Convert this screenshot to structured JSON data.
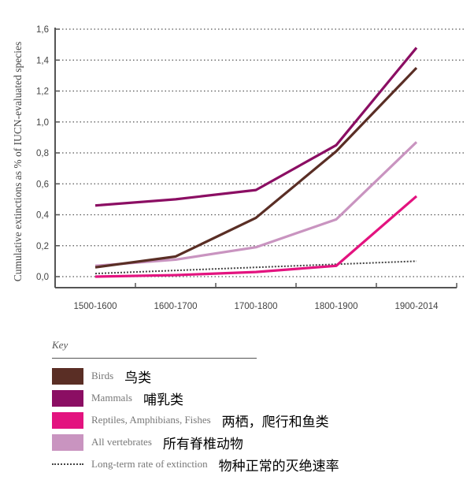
{
  "chart_data": {
    "type": "line",
    "title": "",
    "xlabel": "",
    "ylabel": "Cumulative extinctions as % of IUCN-evaluated species",
    "categories": [
      "1500-1600",
      "1600-1700",
      "1700-1800",
      "1800-1900",
      "1900-2014"
    ],
    "ylim": [
      0,
      1.6
    ],
    "yticks": [
      "0,0",
      "0,2",
      "0,4",
      "0,6",
      "0,8",
      "1,0",
      "1,2",
      "1,4",
      "1,6"
    ],
    "grid": true,
    "legend_position": "bottom",
    "series": [
      {
        "name": "Birds",
        "name_zh": "鸟类",
        "color": "#5a2e25",
        "style": "solid",
        "values": [
          0.06,
          0.13,
          0.38,
          0.81,
          1.35
        ]
      },
      {
        "name": "Mammals",
        "name_zh": "哺乳类",
        "color": "#8b0e63",
        "style": "solid",
        "values": [
          0.46,
          0.5,
          0.56,
          0.85,
          1.48
        ]
      },
      {
        "name": "Reptiles, Amphibians, Fishes",
        "name_zh": "两栖，爬行和鱼类",
        "color": "#e3137f",
        "style": "solid",
        "values": [
          0.0,
          0.01,
          0.03,
          0.07,
          0.52
        ]
      },
      {
        "name": "All vertebrates",
        "name_zh": "所有脊椎动物",
        "color": "#c994c0",
        "style": "solid",
        "values": [
          0.07,
          0.11,
          0.19,
          0.37,
          0.87
        ]
      },
      {
        "name": "Long-term rate of extinction",
        "name_zh": "物种正常的灭绝速率",
        "color": "#444444",
        "style": "dotted",
        "values": [
          0.02,
          0.04,
          0.06,
          0.08,
          0.1
        ]
      }
    ]
  },
  "legend": {
    "title": "Key",
    "items": [
      {
        "label": "Birds",
        "label_zh": "鸟类",
        "color": "#5a2e25",
        "type": "swatch"
      },
      {
        "label": "Mammals",
        "label_zh": "哺乳类",
        "color": "#8b0e63",
        "type": "swatch"
      },
      {
        "label": "Reptiles, Amphibians, Fishes",
        "label_zh": "两栖，爬行和鱼类",
        "color": "#e3137f",
        "type": "swatch"
      },
      {
        "label": "All vertebrates",
        "label_zh": "所有脊椎动物",
        "color": "#c994c0",
        "type": "swatch"
      },
      {
        "label": "Long-term rate of extinction",
        "label_zh": "物种正常的灭绝速率",
        "color": "#444444",
        "type": "dotted"
      }
    ]
  }
}
